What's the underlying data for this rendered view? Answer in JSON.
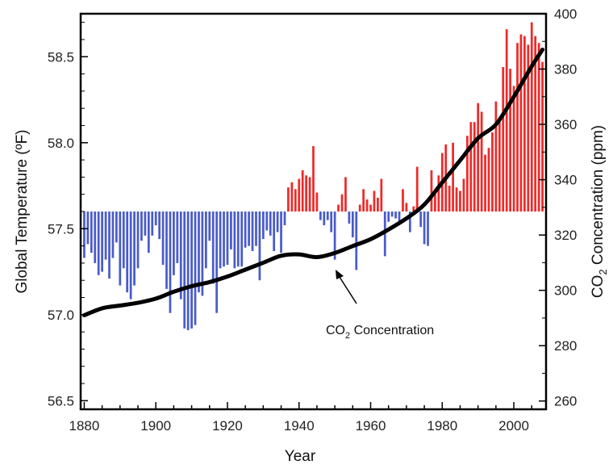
{
  "chart_data": {
    "type": "bar",
    "title": "",
    "xlabel": "Year",
    "ylabel_left": "Global Temperature (ºF)",
    "ylabel_right_parts": [
      "CO",
      "2",
      " Concentration (ppm)"
    ],
    "xlim": [
      1879,
      2009
    ],
    "ylim_left": [
      56.45,
      58.75
    ],
    "ylim_right": [
      257,
      400
    ],
    "baseline": 57.6,
    "x_ticks": [
      1880,
      1900,
      1920,
      1940,
      1960,
      1980,
      2000
    ],
    "y_left_ticks": [
      "56.5",
      "57.0",
      "57.5",
      "58.0",
      "58.5"
    ],
    "y_right_ticks": [
      "260",
      "280",
      "300",
      "320",
      "340",
      "360",
      "380",
      "400"
    ],
    "colors": {
      "above": "#ee2a2a",
      "below": "#4a5cc8",
      "line": "#000000"
    },
    "temperature_series": {
      "x": [
        1880,
        1881,
        1882,
        1883,
        1884,
        1885,
        1886,
        1887,
        1888,
        1889,
        1890,
        1891,
        1892,
        1893,
        1894,
        1895,
        1896,
        1897,
        1898,
        1899,
        1900,
        1901,
        1902,
        1903,
        1904,
        1905,
        1906,
        1907,
        1908,
        1909,
        1910,
        1911,
        1912,
        1913,
        1914,
        1915,
        1916,
        1917,
        1918,
        1919,
        1920,
        1921,
        1922,
        1923,
        1924,
        1925,
        1926,
        1927,
        1928,
        1929,
        1930,
        1931,
        1932,
        1933,
        1934,
        1935,
        1936,
        1937,
        1938,
        1939,
        1940,
        1941,
        1942,
        1943,
        1944,
        1945,
        1946,
        1947,
        1948,
        1949,
        1950,
        1951,
        1952,
        1953,
        1954,
        1955,
        1956,
        1957,
        1958,
        1959,
        1960,
        1961,
        1962,
        1963,
        1964,
        1965,
        1966,
        1967,
        1968,
        1969,
        1970,
        1971,
        1972,
        1973,
        1974,
        1975,
        1976,
        1977,
        1978,
        1979,
        1980,
        1981,
        1982,
        1983,
        1984,
        1985,
        1986,
        1987,
        1988,
        1989,
        1990,
        1991,
        1992,
        1993,
        1994,
        1995,
        1996,
        1997,
        1998,
        1999,
        2000,
        2001,
        2002,
        2003,
        2004,
        2005,
        2006,
        2007,
        2008
      ],
      "values": [
        57.33,
        57.41,
        57.36,
        57.3,
        57.23,
        57.25,
        57.32,
        57.21,
        57.33,
        57.42,
        57.17,
        57.27,
        57.13,
        57.09,
        57.17,
        57.27,
        57.43,
        57.46,
        57.36,
        57.46,
        57.52,
        57.44,
        57.29,
        57.15,
        57.01,
        57.23,
        57.3,
        57.09,
        56.92,
        56.91,
        56.92,
        56.94,
        57.13,
        57.11,
        57.27,
        57.43,
        57.18,
        57.01,
        57.27,
        57.28,
        57.29,
        57.38,
        57.27,
        57.28,
        57.28,
        57.39,
        57.4,
        57.37,
        57.4,
        57.2,
        57.44,
        57.49,
        57.46,
        57.37,
        57.48,
        57.36,
        57.52,
        57.74,
        57.77,
        57.73,
        57.79,
        57.84,
        57.81,
        57.8,
        57.98,
        57.71,
        57.55,
        57.52,
        57.55,
        57.48,
        57.32,
        57.64,
        57.7,
        57.8,
        57.53,
        57.45,
        57.26,
        57.64,
        57.73,
        57.67,
        57.64,
        57.72,
        57.68,
        57.79,
        57.34,
        57.54,
        57.57,
        57.56,
        57.54,
        57.73,
        57.65,
        57.48,
        57.63,
        57.86,
        57.51,
        57.41,
        57.4,
        57.84,
        57.73,
        57.81,
        57.94,
        57.99,
        57.75,
        58.0,
        57.74,
        57.72,
        57.79,
        58.04,
        58.12,
        58.12,
        58.23,
        58.18,
        57.93,
        57.97,
        58.06,
        58.24,
        58.14,
        58.44,
        58.66,
        58.43,
        58.33,
        58.58,
        58.63,
        58.62,
        58.57,
        58.7,
        58.62,
        58.58,
        58.47
      ]
    },
    "co2_series": {
      "name": "CO2 Concentration",
      "x": [
        1880,
        1885,
        1890,
        1895,
        1900,
        1905,
        1910,
        1915,
        1920,
        1925,
        1930,
        1935,
        1940,
        1945,
        1950,
        1955,
        1960,
        1965,
        1970,
        1975,
        1980,
        1985,
        1990,
        1995,
        2000,
        2005,
        2008
      ],
      "values": [
        291,
        293.5,
        294.5,
        295.5,
        297,
        299.5,
        301.5,
        303,
        305,
        307.5,
        310,
        312.5,
        313,
        312,
        313.5,
        316,
        318.5,
        322,
        326,
        331,
        339,
        347,
        355,
        360,
        370,
        381,
        387
      ]
    },
    "annotation": {
      "parts": [
        "CO",
        "2",
        " Concentration"
      ],
      "x": 1950,
      "y": 313
    }
  }
}
